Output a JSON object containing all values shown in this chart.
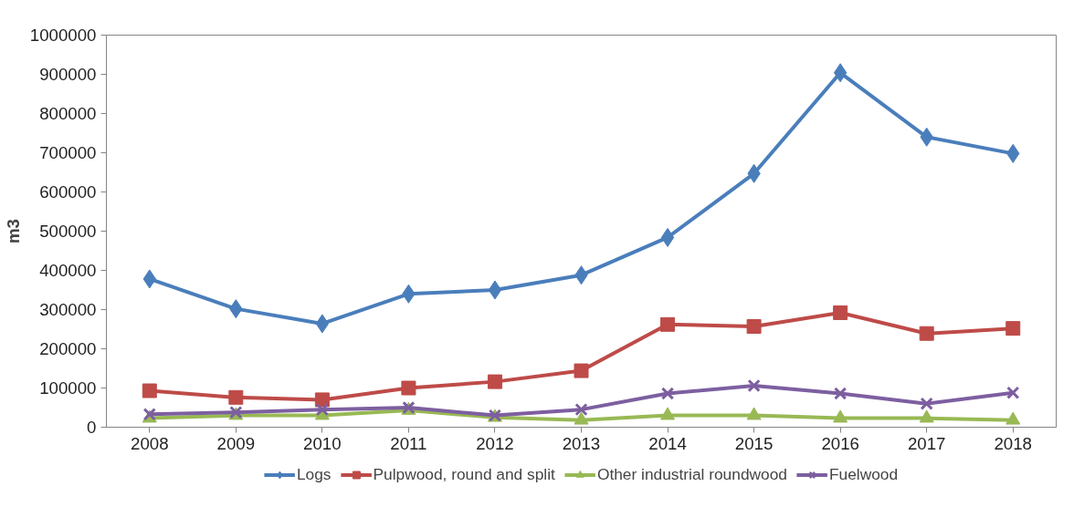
{
  "chart_data": {
    "type": "line",
    "ylabel": "m3",
    "categories": [
      "2008",
      "2009",
      "2010",
      "2011",
      "2012",
      "2013",
      "2014",
      "2015",
      "2016",
      "2017",
      "2018"
    ],
    "ylim": [
      0,
      1000000
    ],
    "yticks": [
      0,
      100000,
      200000,
      300000,
      400000,
      500000,
      600000,
      700000,
      800000,
      900000,
      1000000
    ],
    "legend": "bottom",
    "series": [
      {
        "name": "Logs",
        "color": "#4a7ebb",
        "marker": "diamond",
        "values": [
          378000,
          302000,
          264000,
          340000,
          350000,
          388000,
          484000,
          647000,
          904000,
          740000,
          698000
        ]
      },
      {
        "name": "Pulpwood, round and split",
        "color": "#be4b48",
        "marker": "square",
        "values": [
          93000,
          76000,
          70000,
          100000,
          116000,
          144000,
          262000,
          257000,
          292000,
          239000,
          252000
        ]
      },
      {
        "name": "Other industrial roundwood",
        "color": "#98b954",
        "marker": "triangle",
        "values": [
          23000,
          30000,
          30000,
          43000,
          25000,
          18000,
          30000,
          30000,
          23000,
          23000,
          18000
        ]
      },
      {
        "name": "Fuelwood",
        "color": "#7d5fa0",
        "marker": "cross",
        "values": [
          33000,
          38000,
          45000,
          50000,
          30000,
          45000,
          86000,
          106000,
          86000,
          60000,
          88000
        ]
      }
    ]
  }
}
